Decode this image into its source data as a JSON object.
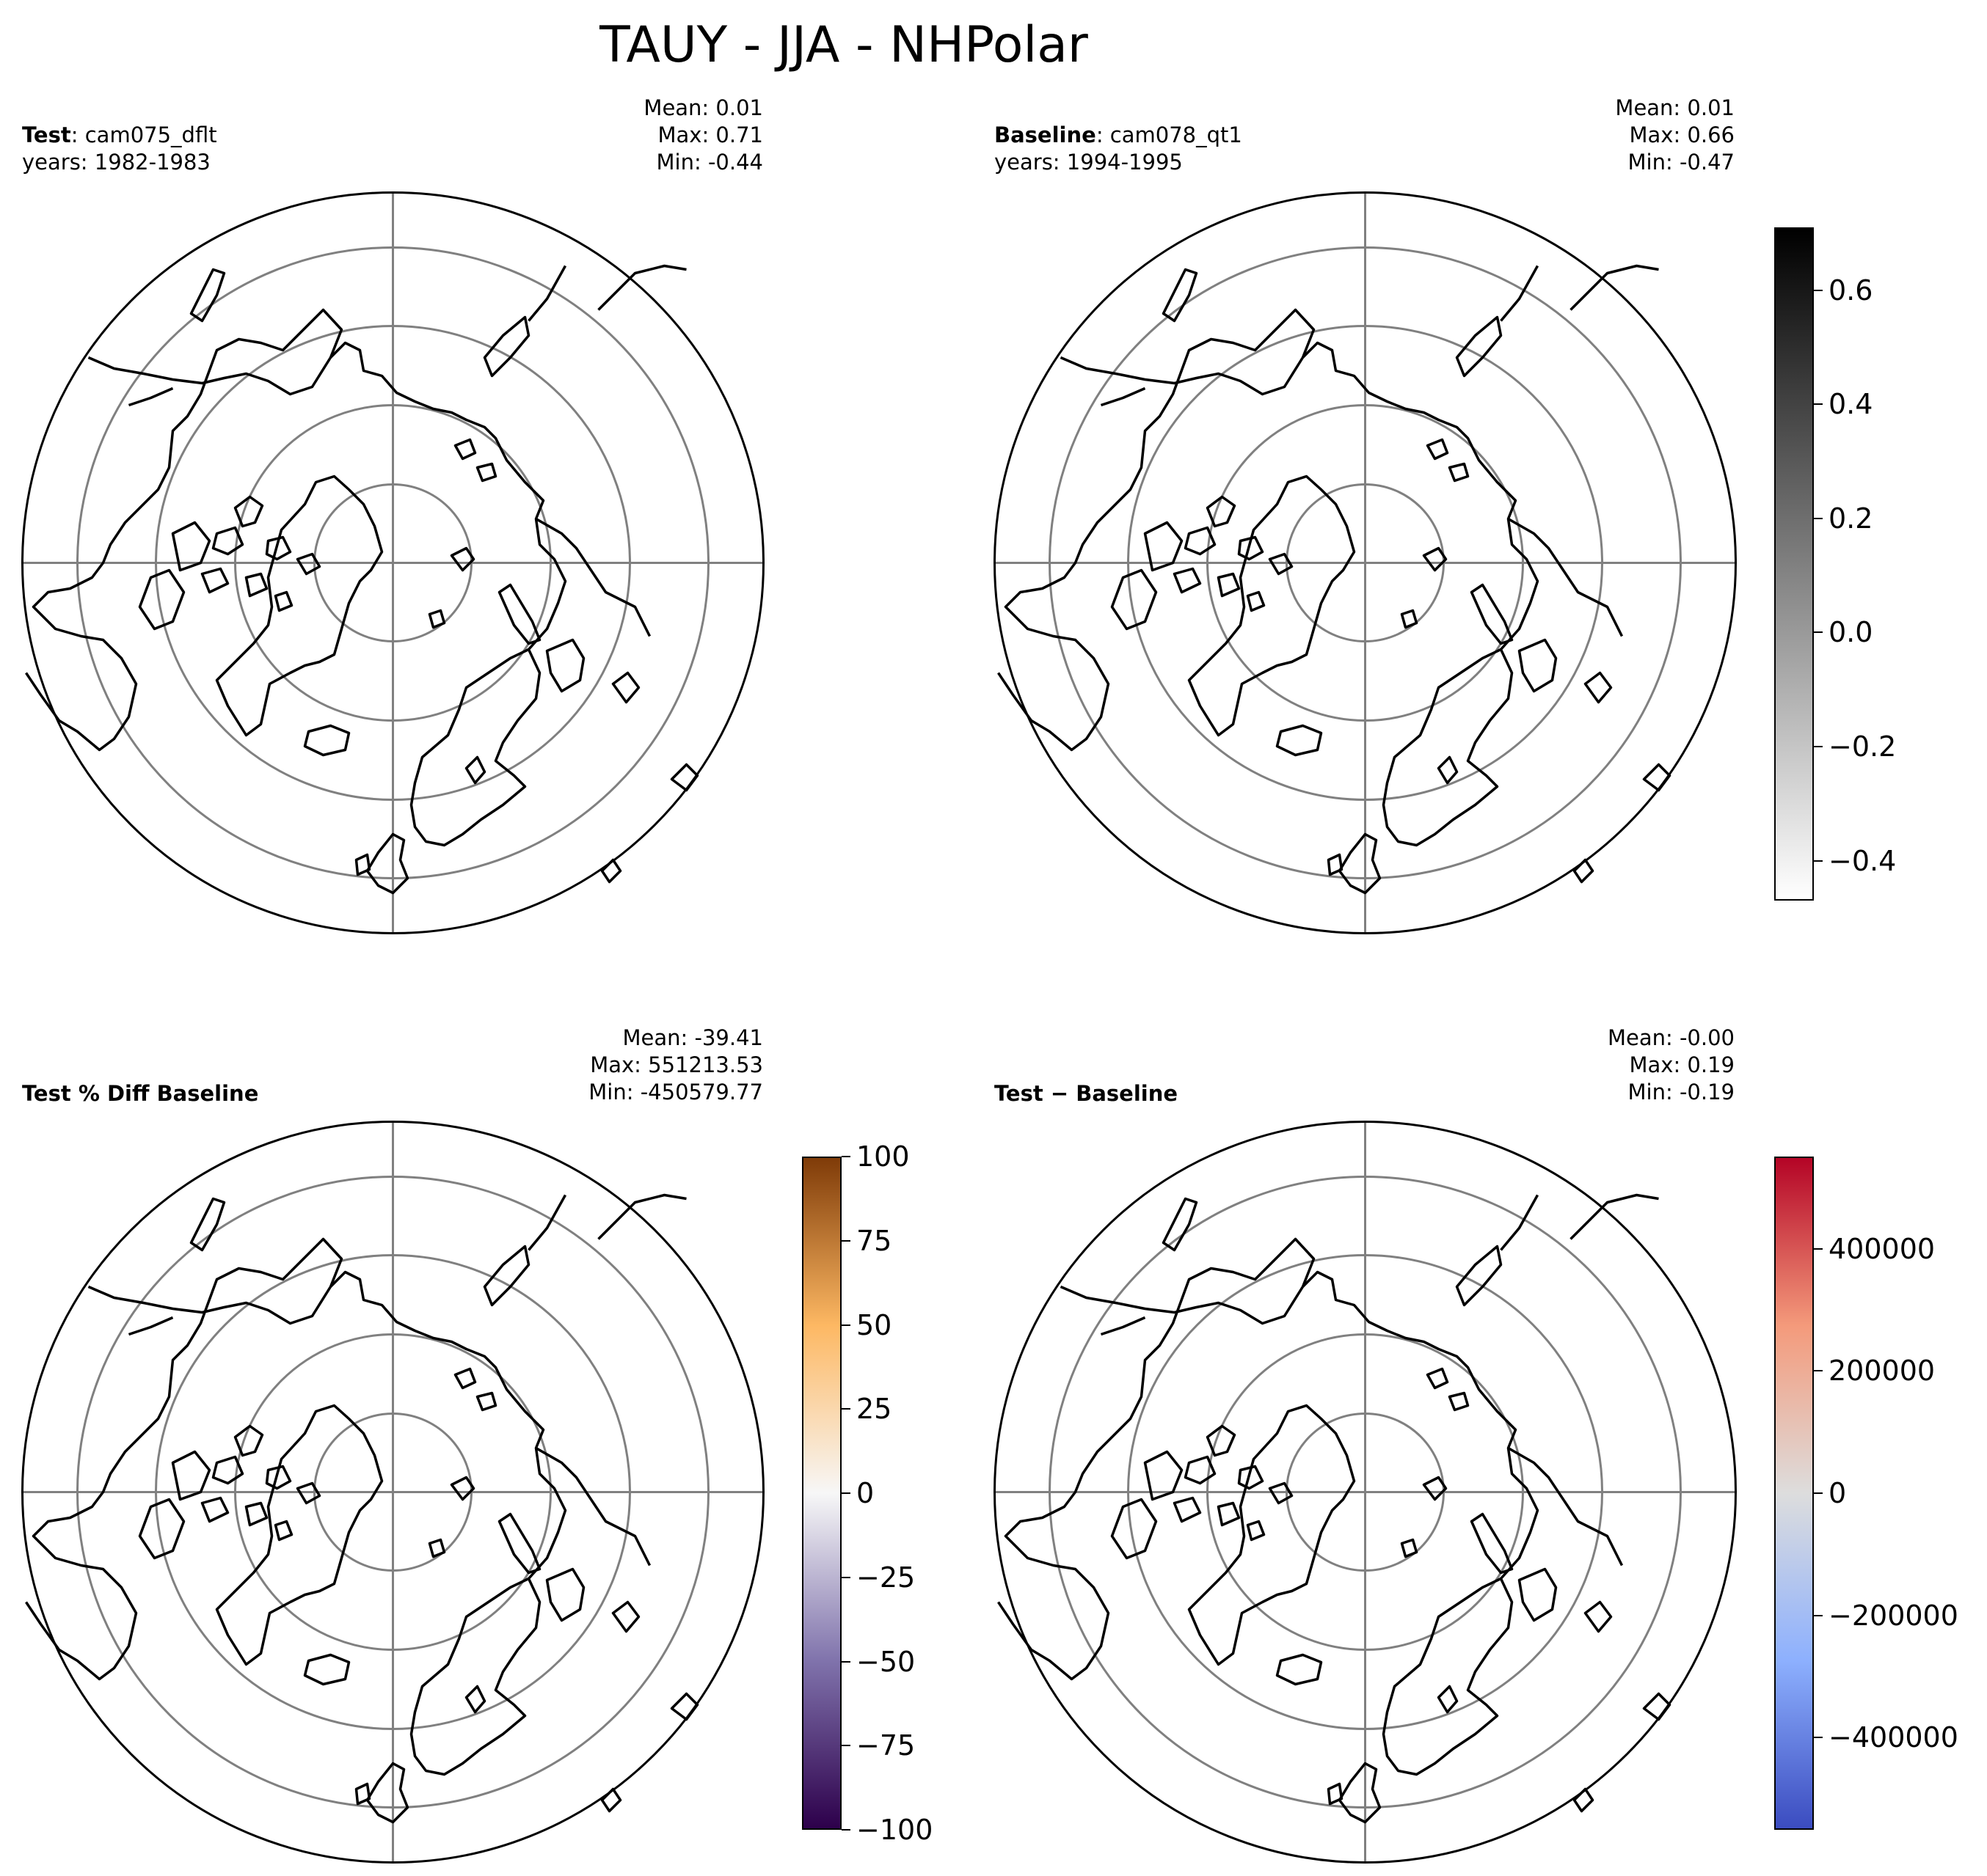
{
  "figure": {
    "title": "TAUY - JJA - NHPolar"
  },
  "panels": [
    {
      "id": "test",
      "label_bold": "Test",
      "label_rest": ": cam075_dflt",
      "years": "years: 1982-1983",
      "stats": {
        "mean": "Mean:  0.01",
        "max": "Max:  0.71",
        "min": "Min: -0.44"
      }
    },
    {
      "id": "baseline",
      "label_bold": "Baseline",
      "label_rest": ": cam078_qt1",
      "years": "years: 1994-1995",
      "stats": {
        "mean": "Mean:  0.01",
        "max": "Max:  0.66",
        "min": "Min: -0.47"
      }
    },
    {
      "id": "pctdiff",
      "label_bold": "Test % Diff Baseline",
      "label_rest": "",
      "years": "",
      "stats": {
        "mean": "Mean: -39.41",
        "max": "Max: 551213.53",
        "min": "Min: -450579.77"
      }
    },
    {
      "id": "diff",
      "label_bold": "Test − Baseline",
      "label_rest": "",
      "years": "",
      "stats": {
        "mean": "Mean: -0.00",
        "max": "Max:  0.19",
        "min": "Min: -0.19"
      }
    }
  ],
  "colorbars": [
    {
      "id": "cbar-main",
      "colormap": "Greys",
      "colors": [
        "#ffffff",
        "#000000"
      ],
      "range": [
        -0.47,
        0.71
      ],
      "ticks": [
        {
          "value": 0.6,
          "label": "0.6"
        },
        {
          "value": 0.4,
          "label": "0.4"
        },
        {
          "value": 0.2,
          "label": "0.2"
        },
        {
          "value": 0.0,
          "label": "0.0"
        },
        {
          "value": -0.2,
          "label": "−0.2"
        },
        {
          "value": -0.4,
          "label": "−0.4"
        }
      ]
    },
    {
      "id": "cbar-pctdiff",
      "colormap": "PuOr_r",
      "colors": [
        "#2d004b",
        "#8073ac",
        "#f7f7f7",
        "#fdb863",
        "#7f3b08"
      ],
      "range": [
        -100,
        100
      ],
      "ticks": [
        {
          "value": 100,
          "label": "100"
        },
        {
          "value": 75,
          "label": "75"
        },
        {
          "value": 50,
          "label": "50"
        },
        {
          "value": 25,
          "label": "25"
        },
        {
          "value": 0,
          "label": "0"
        },
        {
          "value": -25,
          "label": "−25"
        },
        {
          "value": -50,
          "label": "−50"
        },
        {
          "value": -75,
          "label": "−75"
        },
        {
          "value": -100,
          "label": "−100"
        }
      ]
    },
    {
      "id": "cbar-diff",
      "colormap": "coolwarm",
      "colors": [
        "#3b4cc0",
        "#8db0fe",
        "#dddddd",
        "#f49a7b",
        "#b40426"
      ],
      "range": [
        -551213.53,
        551213.53
      ],
      "ticks": [
        {
          "value": 400000,
          "label": "400000"
        },
        {
          "value": 200000,
          "label": "200000"
        },
        {
          "value": 0,
          "label": "0"
        },
        {
          "value": -200000,
          "label": "−200000"
        },
        {
          "value": -400000,
          "label": "−400000"
        }
      ]
    }
  ],
  "map": {
    "projection": "North Polar Stereographic",
    "line_color": "#000000",
    "grid_color": "#808080"
  }
}
